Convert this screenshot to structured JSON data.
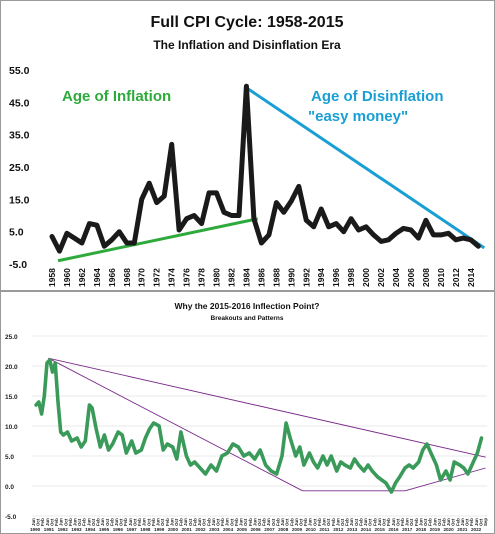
{
  "chart_data": [
    {
      "type": "line",
      "title": "Full CPI Cycle: 1958-2015",
      "subtitle": "The Inflation and Disinflation Era",
      "ylim": [
        -5,
        55
      ],
      "y_ticks": [
        "55.0",
        "45.0",
        "35.0",
        "25.0",
        "15.0",
        "5.0",
        "-5.0"
      ],
      "x_ticks": [
        "1958",
        "1960",
        "1962",
        "1964",
        "1966",
        "1968",
        "1970",
        "1972",
        "1974",
        "1976",
        "1978",
        "1980",
        "1982",
        "1984",
        "1986",
        "1988",
        "1990",
        "1992",
        "1994",
        "1996",
        "1998",
        "2000",
        "2002",
        "2004",
        "2006",
        "2008",
        "2010",
        "2012",
        "2014"
      ],
      "series": [
        {
          "color": "#1a1a1a",
          "x": [
            1958,
            1959,
            1960,
            1961,
            1962,
            1963,
            1964,
            1965,
            1966,
            1967,
            1968,
            1969,
            1970,
            1971,
            1972,
            1973,
            1974,
            1975,
            1976,
            1977,
            1978,
            1979,
            1980,
            1981,
            1982,
            1983,
            1984,
            1985,
            1986,
            1987,
            1988,
            1989,
            1990,
            1991,
            1992,
            1993,
            1994,
            1995,
            1996,
            1997,
            1998,
            1999,
            2000,
            2001,
            2002,
            2003,
            2004,
            2005,
            2006,
            2007,
            2008,
            2009,
            2010,
            2011,
            2012,
            2013,
            2014,
            2015
          ],
          "y": [
            3.5,
            -1.0,
            4.5,
            3.0,
            1.5,
            7.5,
            7.0,
            0.5,
            2.5,
            5.0,
            1.5,
            1.5,
            15.0,
            20.0,
            14.0,
            16.0,
            32.0,
            5.5,
            9.0,
            10.0,
            7.5,
            17.0,
            17.0,
            11.0,
            10.0,
            10.0,
            50.0,
            9.0,
            1.5,
            4.0,
            14.0,
            11.0,
            14.5,
            19.0,
            8.5,
            6.5,
            12.0,
            6.5,
            7.5,
            5.0,
            9.0,
            5.5,
            6.5,
            4.0,
            2.0,
            2.5,
            4.5,
            6.0,
            5.5,
            3.0,
            8.5,
            4.0,
            4.0,
            4.5,
            2.5,
            3.0,
            2.5,
            0.5
          ]
        }
      ],
      "annotations": [
        {
          "text": "Age of Inflation",
          "color": "#2eaa3c"
        },
        {
          "text": "Age of Disinflation",
          "color": "#1a9fd4"
        },
        {
          "text": "\"easy money\"",
          "color": "#1a9fd4"
        }
      ],
      "trendlines": [
        {
          "color": "#2eaa3c",
          "from": [
            1958.8,
            -4.0
          ],
          "to": [
            1985.5,
            9.0
          ]
        },
        {
          "color": "#1a9fd4",
          "from": [
            1984.0,
            49.5
          ],
          "to": [
            2015.8,
            0.0
          ]
        }
      ]
    },
    {
      "type": "line",
      "title": "Why the 2015-2016 Inflection Point?",
      "subtitle": "Breakouts and Patterns",
      "ylim": [
        -5,
        25
      ],
      "y_ticks": [
        "25.0",
        "20.0",
        "15.0",
        "10.0",
        "5.0",
        "0.0",
        "-5.0"
      ],
      "year_labels": [
        "1990",
        "1991",
        "1992",
        "1993",
        "1994",
        "1995",
        "1996",
        "1997",
        "1998",
        "1999",
        "2000",
        "2001",
        "2002",
        "2003",
        "2004",
        "2005",
        "2006",
        "2007",
        "2008",
        "2009",
        "2010",
        "2011",
        "2012",
        "2013",
        "2014",
        "2015",
        "2016",
        "2017",
        "2018",
        "2019",
        "2020",
        "2021",
        "2022"
      ],
      "month_labels": [
        "Jun",
        "Oct",
        "Feb",
        "Jun",
        "Oct",
        "Feb",
        "Jun",
        "Oct",
        "Feb",
        "Jun",
        "Oct",
        "Feb",
        "Jun",
        "Oct",
        "Feb",
        "Jun",
        "Oct",
        "Feb",
        "Jun",
        "Oct",
        "Feb",
        "Jun",
        "Oct",
        "Feb",
        "Jun",
        "Oct",
        "Feb",
        "Jun",
        "Oct",
        "Feb",
        "Jun",
        "Oct",
        "Feb",
        "Jun",
        "Oct",
        "Feb",
        "Jun",
        "Oct",
        "Feb",
        "Jun",
        "Oct",
        "Feb",
        "Jun",
        "Oct",
        "Feb",
        "Jun",
        "Oct",
        "Feb",
        "Jun",
        "Oct",
        "Feb",
        "Jun",
        "Oct",
        "Feb",
        "Jun",
        "Oct",
        "Feb",
        "Jun",
        "Oct",
        "Feb",
        "Jun",
        "Oct",
        "Feb",
        "Jun",
        "Oct",
        "Feb",
        "Jun",
        "Oct",
        "Feb",
        "Jun",
        "Oct",
        "Feb",
        "Jun",
        "Oct",
        "Feb",
        "Jun",
        "Oct",
        "Feb",
        "Jun",
        "Oct",
        "Feb",
        "Jun",
        "Oct",
        "Feb",
        "Jun",
        "Oct",
        "Feb",
        "Jun",
        "Oct",
        "Feb",
        "Jun",
        "Oct",
        "Feb",
        "Jun",
        "Oct",
        "Feb",
        "Jun",
        "Oct",
        "Sep"
      ],
      "series": [
        {
          "color": "#3a9a5a",
          "x": [
            1990.0,
            1990.2,
            1990.4,
            1990.6,
            1990.8,
            1991.0,
            1991.2,
            1991.4,
            1991.6,
            1991.8,
            1992.0,
            1992.3,
            1992.6,
            1993.0,
            1993.3,
            1993.6,
            1993.9,
            1994.1,
            1994.4,
            1994.7,
            1995.0,
            1995.3,
            1995.6,
            1996.0,
            1996.3,
            1996.6,
            1997.0,
            1997.3,
            1997.7,
            1998.0,
            1998.3,
            1998.6,
            1999.0,
            1999.3,
            1999.6,
            2000.0,
            2000.3,
            2000.6,
            2001.0,
            2001.3,
            2001.6,
            2002.0,
            2002.4,
            2002.8,
            2003.2,
            2003.6,
            2004.0,
            2004.4,
            2004.8,
            2005.2,
            2005.6,
            2006.0,
            2006.4,
            2006.8,
            2007.2,
            2007.6,
            2008.0,
            2008.3,
            2008.6,
            2009.0,
            2009.3,
            2009.6,
            2010.0,
            2010.3,
            2010.6,
            2011.0,
            2011.3,
            2011.6,
            2012.0,
            2012.3,
            2012.6,
            2013.0,
            2013.3,
            2013.6,
            2014.0,
            2014.3,
            2014.6,
            2015.0,
            2015.3,
            2015.6,
            2016.0,
            2016.3,
            2016.6,
            2017.0,
            2017.3,
            2017.6,
            2018.0,
            2018.3,
            2018.6,
            2019.0,
            2019.3,
            2019.6,
            2020.0,
            2020.3,
            2020.6,
            2021.0,
            2021.3,
            2021.6,
            2022.0,
            2022.3,
            2022.6
          ],
          "y": [
            13.5,
            14.0,
            12.0,
            15.0,
            20.5,
            21.0,
            19.0,
            20.5,
            14.0,
            9.0,
            8.5,
            9.0,
            7.5,
            8.0,
            6.5,
            7.5,
            13.5,
            13.0,
            9.5,
            6.5,
            8.5,
            6.0,
            7.0,
            9.0,
            8.5,
            5.5,
            7.5,
            5.5,
            6.0,
            8.0,
            9.5,
            10.5,
            10.0,
            6.0,
            7.0,
            6.5,
            4.5,
            9.0,
            5.0,
            3.5,
            4.0,
            3.0,
            2.0,
            3.5,
            2.5,
            5.0,
            5.5,
            7.0,
            6.5,
            5.0,
            5.5,
            4.5,
            6.0,
            3.5,
            2.5,
            2.0,
            5.0,
            10.5,
            8.0,
            5.0,
            6.5,
            3.5,
            5.5,
            4.0,
            3.0,
            5.0,
            3.5,
            5.0,
            2.5,
            4.0,
            3.5,
            3.0,
            4.5,
            3.5,
            2.5,
            3.5,
            2.5,
            1.5,
            1.0,
            0.5,
            -1.0,
            0.5,
            1.5,
            3.0,
            3.5,
            3.0,
            4.0,
            6.0,
            7.0,
            5.0,
            3.5,
            1.0,
            2.5,
            1.0,
            4.0,
            3.5,
            3.0,
            2.0,
            4.0,
            5.5,
            8.0
          ]
        }
      ],
      "trendlines": [
        {
          "color": "#7a2a8a",
          "from": [
            1990.9,
            21.3
          ],
          "to": [
            2022.9,
            4.8
          ]
        },
        {
          "color": "#7a2a8a",
          "from": [
            1990.9,
            21.3
          ],
          "to": [
            2009.5,
            -0.8
          ]
        },
        {
          "color": "#7a2a8a",
          "from": [
            2009.5,
            -0.8
          ],
          "to": [
            2017.0,
            -0.8
          ]
        },
        {
          "color": "#7a2a8a",
          "from": [
            2017.0,
            -0.8
          ],
          "to": [
            2022.9,
            3.0
          ]
        }
      ]
    }
  ]
}
